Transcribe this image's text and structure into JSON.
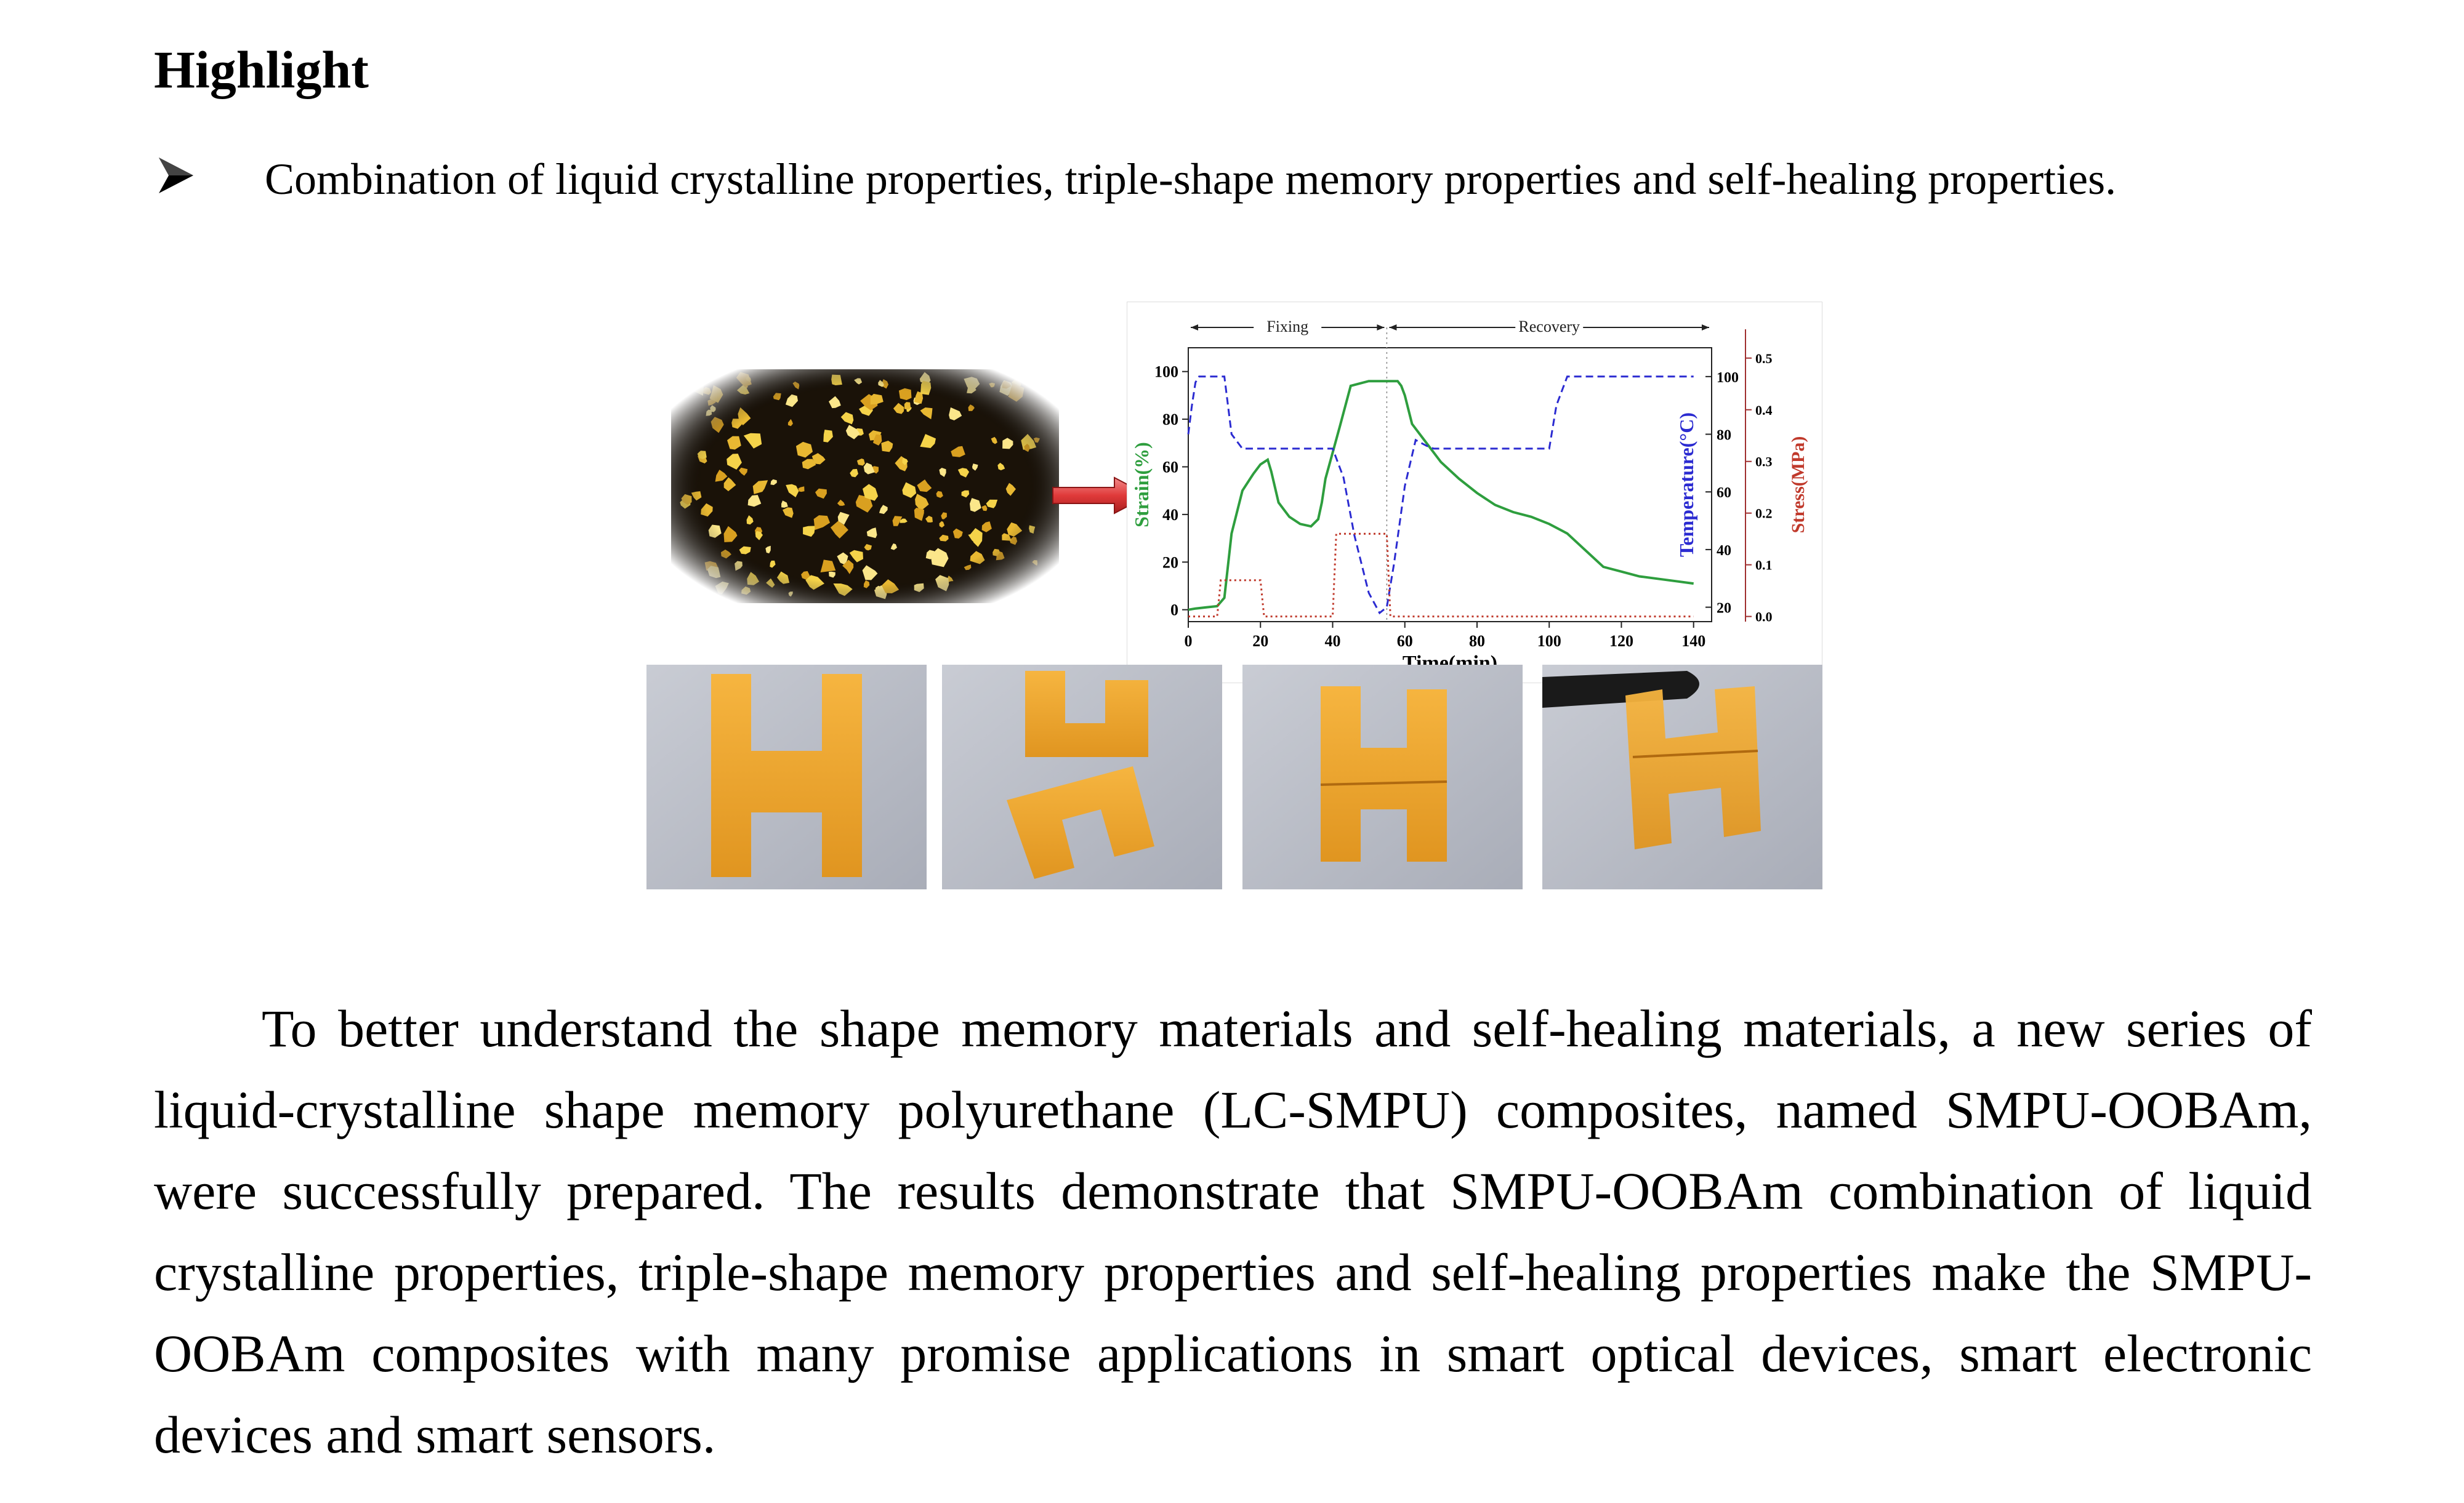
{
  "heading": "Highlight",
  "bullet": {
    "icon": "arrowhead-bullet-icon",
    "text": "Combination of liquid crystalline properties, triple-shape memory properties and self-healing properties."
  },
  "figure": {
    "micrograph": {
      "description_icon": "polarized-micrograph-image"
    },
    "arrow_color": "#e03a3a",
    "chart_data": {
      "type": "line",
      "phase_labels": [
        "Fixing",
        "Recovery"
      ],
      "xlabel": "Time(min)",
      "x_ticks": [
        0,
        20,
        40,
        60,
        80,
        100,
        120,
        140
      ],
      "xlim": [
        0,
        145
      ],
      "y_left": {
        "label": "Strain(%)",
        "ticks": [
          0,
          20,
          40,
          60,
          80,
          100
        ],
        "lim": [
          -5,
          110
        ],
        "color": "#2e9e3e"
      },
      "y_right_temp": {
        "label": "Temperature(°C)",
        "ticks": [
          20,
          40,
          60,
          80,
          100
        ],
        "lim": [
          15,
          110
        ],
        "color": "#2b2bd1"
      },
      "y_right_stress": {
        "label": "Stress(MPa)",
        "ticks": [
          0.0,
          0.1,
          0.2,
          0.3,
          0.4,
          0.5
        ],
        "lim": [
          -0.01,
          0.52
        ],
        "color": "#c0392b"
      },
      "series": [
        {
          "axis": "strain",
          "color": "#2e9e3e",
          "style": "solid",
          "x": [
            0,
            2,
            5,
            8,
            10,
            12,
            15,
            18,
            20,
            22,
            23,
            25,
            28,
            31,
            34,
            36,
            37,
            38,
            40,
            42,
            45,
            50,
            55,
            58,
            59,
            60,
            62,
            65,
            70,
            75,
            80,
            85,
            90,
            95,
            100,
            105,
            110,
            115,
            120,
            125,
            130,
            135,
            140
          ],
          "y": [
            0,
            0.5,
            1,
            1.5,
            5,
            32,
            50,
            57,
            61,
            63,
            58,
            45,
            39,
            36,
            35,
            38,
            45,
            55,
            66,
            77,
            94,
            96,
            96,
            96,
            94,
            90,
            78,
            72,
            62,
            55,
            49,
            44,
            41,
            39,
            36,
            32,
            25,
            18,
            16,
            14,
            13,
            12,
            11
          ]
        },
        {
          "axis": "temperature",
          "color": "#2b2bd1",
          "style": "dashed",
          "x": [
            0,
            1,
            2,
            3,
            5,
            8,
            10,
            12,
            15,
            20,
            25,
            30,
            35,
            40,
            43,
            46,
            50,
            53,
            55,
            57,
            60,
            63,
            66,
            68,
            70,
            80,
            90,
            100,
            102,
            105,
            110,
            120,
            130,
            140
          ],
          "y": [
            80,
            90,
            98,
            100,
            100,
            100,
            100,
            80,
            75,
            75,
            75,
            75,
            75,
            75,
            65,
            45,
            25,
            18,
            20,
            35,
            62,
            78,
            76,
            75,
            75,
            75,
            75,
            75,
            90,
            100,
            100,
            100,
            100,
            100
          ]
        },
        {
          "axis": "stress",
          "color": "#c0392b",
          "style": "dotted",
          "x": [
            0,
            8,
            9,
            20,
            21,
            22,
            40,
            41,
            42,
            55,
            56,
            57,
            140
          ],
          "y": [
            0.0,
            0.0,
            0.07,
            0.07,
            0.0,
            0.0,
            0.0,
            0.16,
            0.16,
            0.16,
            0.0,
            0.0,
            0.0
          ]
        }
      ]
    },
    "photos": [
      {
        "name": "h-sample-original"
      },
      {
        "name": "h-sample-cut"
      },
      {
        "name": "h-sample-healed"
      },
      {
        "name": "h-sample-healed-held"
      }
    ],
    "sample_color": "#f2a52c"
  },
  "paragraph": "To better understand the shape memory materials and self-healing materials, a new series of liquid-crystalline shape memory polyurethane (LC-SMPU) composites, named SMPU-OOBAm, were successfully prepared. The results demonstrate that SMPU-OOBAm combination of liquid crystalline properties, triple-shape memory properties and self-healing properties make the SMPU-OOBAm composites with many promise applications in smart optical devices, smart electronic devices and smart sensors."
}
